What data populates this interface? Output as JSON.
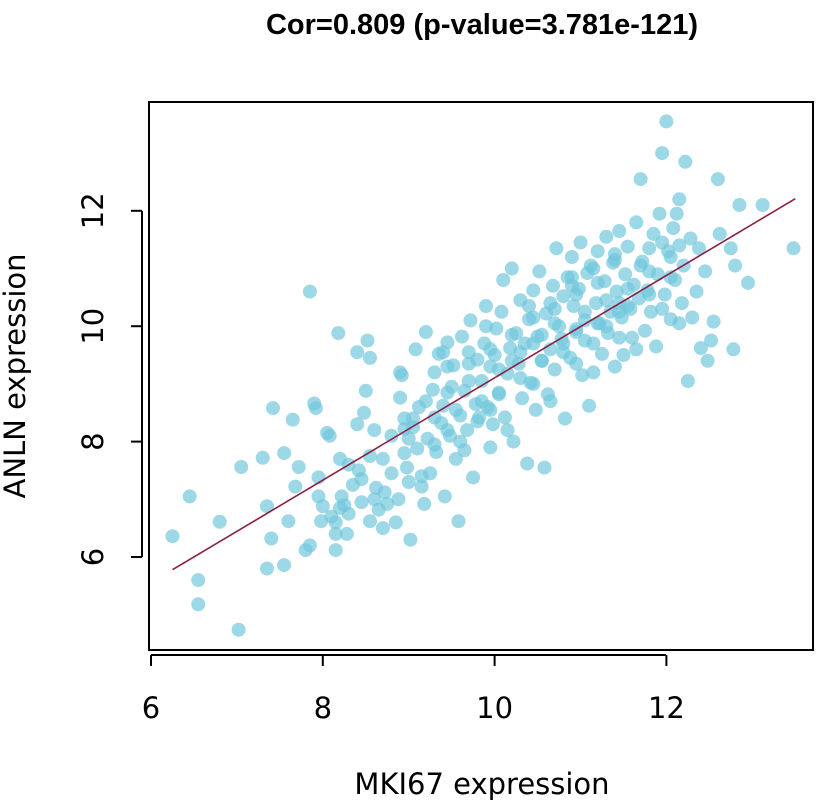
{
  "chart_data": {
    "type": "scatter",
    "title": "Cor=0.809 (p-value=3.781e-121)",
    "xlabel": "MKI67 expression",
    "ylabel": "ANLN expression",
    "xlim": [
      6,
      13.5
    ],
    "ylim": [
      4.6,
      13.6
    ],
    "x_ticks": [
      6,
      8,
      10,
      12
    ],
    "y_ticks": [
      6,
      8,
      10,
      12
    ],
    "x_tick_labels": [
      "6",
      "8",
      "10",
      "12"
    ],
    "y_tick_labels": [
      "6",
      "8",
      "10",
      "12"
    ],
    "grid": false,
    "legend": "none",
    "point_color": "#6ec6db",
    "line_color": "#8a2045",
    "correlation": 0.809,
    "p_value": "3.781e-121",
    "fit_line": {
      "x": [
        6.25,
        13.5
      ],
      "y": [
        5.78,
        12.21
      ]
    },
    "points": [
      [
        6.25,
        6.36
      ],
      [
        6.45,
        7.05
      ],
      [
        6.55,
        5.6
      ],
      [
        6.55,
        5.18
      ],
      [
        6.8,
        6.61
      ],
      [
        7.02,
        4.74
      ],
      [
        7.05,
        7.56
      ],
      [
        7.3,
        7.72
      ],
      [
        7.35,
        6.88
      ],
      [
        7.35,
        5.8
      ],
      [
        7.42,
        8.58
      ],
      [
        7.4,
        6.32
      ],
      [
        7.55,
        7.8
      ],
      [
        7.6,
        6.62
      ],
      [
        7.55,
        5.86
      ],
      [
        7.65,
        8.38
      ],
      [
        7.72,
        7.56
      ],
      [
        7.68,
        7.22
      ],
      [
        7.8,
        6.12
      ],
      [
        7.85,
        10.6
      ],
      [
        7.85,
        6.2
      ],
      [
        7.9,
        8.66
      ],
      [
        7.92,
        8.58
      ],
      [
        7.95,
        7.38
      ],
      [
        7.98,
        6.62
      ],
      [
        8.0,
        6.88
      ],
      [
        8.05,
        8.15
      ],
      [
        8.08,
        8.1
      ],
      [
        8.1,
        6.7
      ],
      [
        8.15,
        6.4
      ],
      [
        8.15,
        6.6
      ],
      [
        8.15,
        6.12
      ],
      [
        8.18,
        9.88
      ],
      [
        8.2,
        7.7
      ],
      [
        8.22,
        7.05
      ],
      [
        8.25,
        6.9
      ],
      [
        8.28,
        6.4
      ],
      [
        8.3,
        6.75
      ],
      [
        8.35,
        7.25
      ],
      [
        8.4,
        9.55
      ],
      [
        8.42,
        7.5
      ],
      [
        8.45,
        6.95
      ],
      [
        8.48,
        8.5
      ],
      [
        8.5,
        8.88
      ],
      [
        8.52,
        9.75
      ],
      [
        8.55,
        9.45
      ],
      [
        8.55,
        6.62
      ],
      [
        8.6,
        8.2
      ],
      [
        8.62,
        7.2
      ],
      [
        8.65,
        6.82
      ],
      [
        8.7,
        6.5
      ],
      [
        8.72,
        7.12
      ],
      [
        8.75,
        6.92
      ],
      [
        8.8,
        7.45
      ],
      [
        8.85,
        6.6
      ],
      [
        8.88,
        7.0
      ],
      [
        8.9,
        8.76
      ],
      [
        8.92,
        9.15
      ],
      [
        8.95,
        8.22
      ],
      [
        8.98,
        7.55
      ],
      [
        9.0,
        7.3
      ],
      [
        9.02,
        6.3
      ],
      [
        9.05,
        8.4
      ],
      [
        9.08,
        9.6
      ],
      [
        9.1,
        7.88
      ],
      [
        9.12,
        8.6
      ],
      [
        9.15,
        7.22
      ],
      [
        9.18,
        6.92
      ],
      [
        9.2,
        9.9
      ],
      [
        9.22,
        8.05
      ],
      [
        9.25,
        7.45
      ],
      [
        9.28,
        8.9
      ],
      [
        9.3,
        9.2
      ],
      [
        9.32,
        7.82
      ],
      [
        9.35,
        9.52
      ],
      [
        9.38,
        8.32
      ],
      [
        9.4,
        8.62
      ],
      [
        9.42,
        7.05
      ],
      [
        9.45,
        9.72
      ],
      [
        9.48,
        8.1
      ],
      [
        9.5,
        8.95
      ],
      [
        9.52,
        9.32
      ],
      [
        9.55,
        7.7
      ],
      [
        9.58,
        6.62
      ],
      [
        9.6,
        8.45
      ],
      [
        9.62,
        9.82
      ],
      [
        9.65,
        8.88
      ],
      [
        9.68,
        8.2
      ],
      [
        9.7,
        9.55
      ],
      [
        9.72,
        10.1
      ],
      [
        9.75,
        7.38
      ],
      [
        9.78,
        8.65
      ],
      [
        9.8,
        9.42
      ],
      [
        9.82,
        8.42
      ],
      [
        9.85,
        9.05
      ],
      [
        9.88,
        9.7
      ],
      [
        9.9,
        10.35
      ],
      [
        9.92,
        8.6
      ],
      [
        9.95,
        7.9
      ],
      [
        9.98,
        8.3
      ],
      [
        10.0,
        9.5
      ],
      [
        10.02,
        9.96
      ],
      [
        10.05,
        8.82
      ],
      [
        10.08,
        10.25
      ],
      [
        10.1,
        10.8
      ],
      [
        10.12,
        8.42
      ],
      [
        10.15,
        9.18
      ],
      [
        10.18,
        9.62
      ],
      [
        10.2,
        11.0
      ],
      [
        10.22,
        8.0
      ],
      [
        10.25,
        9.88
      ],
      [
        10.28,
        9.35
      ],
      [
        10.3,
        10.45
      ],
      [
        10.32,
        8.75
      ],
      [
        10.35,
        9.7
      ],
      [
        10.38,
        7.62
      ],
      [
        10.4,
        10.12
      ],
      [
        10.42,
        9.02
      ],
      [
        10.45,
        10.62
      ],
      [
        10.48,
        8.55
      ],
      [
        10.5,
        9.82
      ],
      [
        10.52,
        10.95
      ],
      [
        10.55,
        9.4
      ],
      [
        10.58,
        7.55
      ],
      [
        10.6,
        10.22
      ],
      [
        10.62,
        8.82
      ],
      [
        10.65,
        9.6
      ],
      [
        10.68,
        10.7
      ],
      [
        10.7,
        9.25
      ],
      [
        10.72,
        11.35
      ],
      [
        10.75,
        10.0
      ],
      [
        10.78,
        9.78
      ],
      [
        10.8,
        10.52
      ],
      [
        10.82,
        8.4
      ],
      [
        10.85,
        10.85
      ],
      [
        10.88,
        9.45
      ],
      [
        10.9,
        11.2
      ],
      [
        10.92,
        10.35
      ],
      [
        10.95,
        9.9
      ],
      [
        10.98,
        10.65
      ],
      [
        11.0,
        11.45
      ],
      [
        11.02,
        9.15
      ],
      [
        11.05,
        10.1
      ],
      [
        11.08,
        10.92
      ],
      [
        11.1,
        8.62
      ],
      [
        11.12,
        11.05
      ],
      [
        11.15,
        9.7
      ],
      [
        11.18,
        10.4
      ],
      [
        11.2,
        11.3
      ],
      [
        11.22,
        10.05
      ],
      [
        11.25,
        9.52
      ],
      [
        11.28,
        10.78
      ],
      [
        11.3,
        11.55
      ],
      [
        11.32,
        9.88
      ],
      [
        11.35,
        10.25
      ],
      [
        11.38,
        11.1
      ],
      [
        11.4,
        9.3
      ],
      [
        11.42,
        10.6
      ],
      [
        11.45,
        11.65
      ],
      [
        11.48,
        10.15
      ],
      [
        11.5,
        9.5
      ],
      [
        11.52,
        10.9
      ],
      [
        11.55,
        11.38
      ],
      [
        11.58,
        10.3
      ],
      [
        11.6,
        9.8
      ],
      [
        11.62,
        10.72
      ],
      [
        11.65,
        11.8
      ],
      [
        11.68,
        10.48
      ],
      [
        11.7,
        12.55
      ],
      [
        11.72,
        11.12
      ],
      [
        11.75,
        9.92
      ],
      [
        11.78,
        10.62
      ],
      [
        11.8,
        11.35
      ],
      [
        11.82,
        10.25
      ],
      [
        11.85,
        11.6
      ],
      [
        11.88,
        9.65
      ],
      [
        11.9,
        10.9
      ],
      [
        11.92,
        11.95
      ],
      [
        11.95,
        13.0
      ],
      [
        11.98,
        10.55
      ],
      [
        12.0,
        13.55
      ],
      [
        12.02,
        11.3
      ],
      [
        12.05,
        10.12
      ],
      [
        12.08,
        11.7
      ],
      [
        12.1,
        10.8
      ],
      [
        12.12,
        11.95
      ],
      [
        12.15,
        12.2
      ],
      [
        12.18,
        10.4
      ],
      [
        12.2,
        11.05
      ],
      [
        12.22,
        12.85
      ],
      [
        12.25,
        9.05
      ],
      [
        12.28,
        11.52
      ],
      [
        12.3,
        10.15
      ],
      [
        12.35,
        10.6
      ],
      [
        12.38,
        11.35
      ],
      [
        12.4,
        9.62
      ],
      [
        12.45,
        10.95
      ],
      [
        12.48,
        9.4
      ],
      [
        12.52,
        9.75
      ],
      [
        12.55,
        10.08
      ],
      [
        12.6,
        12.55
      ],
      [
        12.62,
        11.6
      ],
      [
        12.75,
        11.35
      ],
      [
        12.78,
        9.6
      ],
      [
        12.8,
        11.05
      ],
      [
        12.85,
        12.1
      ],
      [
        12.95,
        10.75
      ],
      [
        13.12,
        12.1
      ],
      [
        13.48,
        11.35
      ],
      [
        8.3,
        7.6
      ],
      [
        8.7,
        7.7
      ],
      [
        9.0,
        8.05
      ],
      [
        9.3,
        8.42
      ],
      [
        9.6,
        8.0
      ],
      [
        9.85,
        8.7
      ],
      [
        10.05,
        9.25
      ],
      [
        10.3,
        9.55
      ],
      [
        10.55,
        9.85
      ],
      [
        10.8,
        9.7
      ],
      [
        11.05,
        10.25
      ],
      [
        11.3,
        10.45
      ],
      [
        11.55,
        10.65
      ],
      [
        11.8,
        10.95
      ],
      [
        12.05,
        11.2
      ],
      [
        10.65,
        10.4
      ],
      [
        10.9,
        10.7
      ],
      [
        11.15,
        11.0
      ],
      [
        11.4,
        11.15
      ],
      [
        9.45,
        9.3
      ],
      [
        9.7,
        9.05
      ],
      [
        9.95,
        9.3
      ],
      [
        10.2,
        9.85
      ],
      [
        10.45,
        10.15
      ],
      [
        10.7,
        10.3
      ],
      [
        10.95,
        10.55
      ],
      [
        11.2,
        10.75
      ],
      [
        11.45,
        10.4
      ],
      [
        11.7,
        11.05
      ],
      [
        11.95,
        11.45
      ],
      [
        12.15,
        11.4
      ],
      [
        8.95,
        8.4
      ],
      [
        9.2,
        8.7
      ],
      [
        9.45,
        8.85
      ],
      [
        9.7,
        9.35
      ],
      [
        9.95,
        9.6
      ],
      [
        10.2,
        9.4
      ],
      [
        10.45,
        9.7
      ],
      [
        10.7,
        10.05
      ],
      [
        10.95,
        9.95
      ],
      [
        11.2,
        10.05
      ],
      [
        11.45,
        10.25
      ],
      [
        8.55,
        7.75
      ],
      [
        8.8,
        8.1
      ],
      [
        9.05,
        8.25
      ],
      [
        9.3,
        7.95
      ],
      [
        9.55,
        8.55
      ],
      [
        9.8,
        8.35
      ],
      [
        10.05,
        8.85
      ],
      [
        10.3,
        9.1
      ],
      [
        10.55,
        9.4
      ],
      [
        10.8,
        9.55
      ],
      [
        11.05,
        9.75
      ],
      [
        11.3,
        10.0
      ],
      [
        11.55,
        10.35
      ],
      [
        11.8,
        10.55
      ],
      [
        12.05,
        10.85
      ],
      [
        8.4,
        8.3
      ],
      [
        8.9,
        9.2
      ],
      [
        9.4,
        9.55
      ],
      [
        9.9,
        10.0
      ],
      [
        10.4,
        10.35
      ],
      [
        10.9,
        10.85
      ],
      [
        11.4,
        11.25
      ],
      [
        7.95,
        7.05
      ],
      [
        8.45,
        7.35
      ],
      [
        8.95,
        7.8
      ],
      [
        9.45,
        8.2
      ],
      [
        9.95,
        8.55
      ],
      [
        10.45,
        9.0
      ],
      [
        10.95,
        9.35
      ],
      [
        11.45,
        9.8
      ],
      [
        11.95,
        10.3
      ],
      [
        8.2,
        6.85
      ],
      [
        8.6,
        7.0
      ],
      [
        9.15,
        7.4
      ],
      [
        9.65,
        7.85
      ],
      [
        10.15,
        8.2
      ],
      [
        10.65,
        8.7
      ],
      [
        11.15,
        9.2
      ],
      [
        11.65,
        9.6
      ],
      [
        12.15,
        10.05
      ]
    ]
  }
}
